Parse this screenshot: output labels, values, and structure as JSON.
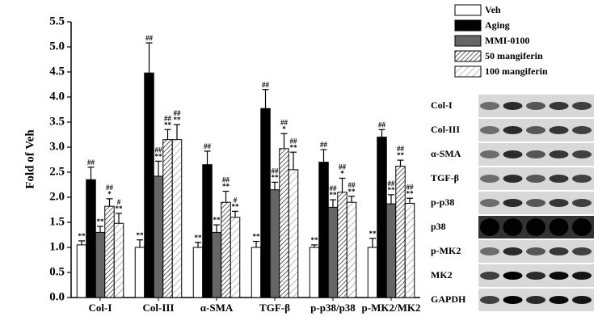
{
  "chart_data": {
    "type": "bar",
    "ylabel": "Fold of Veh",
    "categories": [
      "Col-I",
      "Col-III",
      "α-SMA",
      "TGF-β",
      "p-p38/p38",
      "p-MK2/MK2"
    ],
    "ylim": [
      0,
      5.5
    ],
    "yticks": [
      {
        "value": 0,
        "label": "0.0"
      },
      0.5,
      {
        "value": 1,
        "label": "1.0"
      },
      1.5,
      {
        "value": 2,
        "label": "2.0"
      },
      2.5,
      {
        "value": 3,
        "label": "3.0"
      },
      3.5,
      {
        "value": 4,
        "label": "4.0"
      },
      4.5,
      {
        "value": 5,
        "label": "5.0"
      },
      5.5
    ],
    "series": [
      {
        "name": "Veh",
        "color": "#ffffff",
        "hatch": "none",
        "values": [
          1.05,
          1.0,
          1.0,
          1.0,
          1.0,
          1.0
        ],
        "errors": [
          0.08,
          0.15,
          0.1,
          0.12,
          0.05,
          0.18
        ],
        "annotations": [
          [
            "**"
          ],
          [
            "**"
          ],
          [
            "**"
          ],
          [
            "**"
          ],
          [
            "**"
          ],
          [
            "**"
          ]
        ]
      },
      {
        "name": "Aging",
        "color": "#000000",
        "hatch": "none",
        "values": [
          2.35,
          4.48,
          2.65,
          3.77,
          2.7,
          3.2
        ],
        "errors": [
          0.25,
          0.6,
          0.27,
          0.38,
          0.25,
          0.15
        ],
        "annotations": [
          [
            "##"
          ],
          [
            "##"
          ],
          [
            "##"
          ],
          [
            "##"
          ],
          [
            "##"
          ],
          [
            "##"
          ]
        ]
      },
      {
        "name": "MMI-0100",
        "color": "#666666",
        "hatch": "none",
        "values": [
          1.3,
          2.42,
          1.3,
          2.15,
          1.8,
          1.87
        ],
        "errors": [
          0.12,
          0.3,
          0.15,
          0.15,
          0.15,
          0.18
        ],
        "annotations": [
          [
            "**"
          ],
          [
            "##",
            "**"
          ],
          [
            "**"
          ],
          [
            "##",
            "**"
          ],
          [
            "##",
            "**"
          ],
          [
            "##",
            "**"
          ]
        ]
      },
      {
        "name": "50 mangiferin",
        "color": "#ffffff",
        "hatch": "dense",
        "values": [
          1.82,
          3.15,
          1.9,
          2.97,
          2.1,
          2.62
        ],
        "errors": [
          0.15,
          0.2,
          0.22,
          0.3,
          0.28,
          0.12
        ],
        "annotations": [
          [
            "##",
            "*"
          ],
          [
            "##",
            "**"
          ],
          [
            "##",
            "**"
          ],
          [
            "##",
            "*"
          ],
          [
            "##",
            "*"
          ],
          [
            "##",
            "**"
          ]
        ]
      },
      {
        "name": "100 mangiferin",
        "color": "#ffffff",
        "hatch": "sparse",
        "values": [
          1.48,
          3.15,
          1.6,
          2.55,
          1.9,
          1.88
        ],
        "errors": [
          0.2,
          0.3,
          0.12,
          0.35,
          0.12,
          0.1
        ],
        "annotations": [
          [
            "#",
            "**"
          ],
          [
            "##",
            "**"
          ],
          [
            "#",
            "**"
          ],
          [
            "##",
            "**"
          ],
          [
            "##",
            "**"
          ],
          [
            "##",
            "**"
          ]
        ]
      }
    ]
  },
  "blot_labels": [
    "Col-I",
    "Col-III",
    "α-SMA",
    "TGF-β",
    "p-p38",
    "p38",
    "p-MK2",
    "MK2",
    "GAPDH"
  ]
}
